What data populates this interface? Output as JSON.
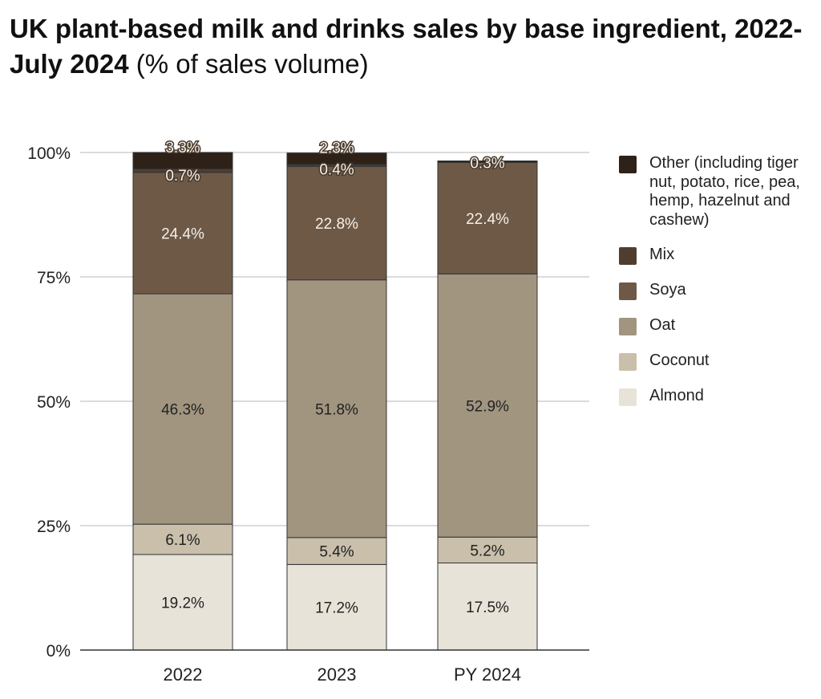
{
  "title_bold": "UK plant-based milk and drinks sales by base ingredient, 2022-July 2024",
  "title_normal": " (% of sales volume)",
  "chart_data": {
    "type": "bar",
    "stacked": true,
    "title": "UK plant-based milk and drinks sales by base ingredient, 2022-July 2024 (% of sales volume)",
    "categories": [
      "2022",
      "2023",
      "PY 2024"
    ],
    "ylim": [
      0,
      100
    ],
    "yticks": [
      "0%",
      "25%",
      "50%",
      "75%",
      "100%"
    ],
    "legend_position": "right",
    "series": [
      {
        "name": "Almond",
        "color": "#e8e3d8",
        "values": [
          19.2,
          17.2,
          17.5
        ],
        "labels": [
          "19.2%",
          "17.2%",
          "17.5%"
        ]
      },
      {
        "name": "Coconut",
        "color": "#c9bfab",
        "values": [
          6.1,
          5.4,
          5.2
        ],
        "labels": [
          "6.1%",
          "5.4%",
          "5.2%"
        ]
      },
      {
        "name": "Oat",
        "color": "#a19580",
        "values": [
          46.3,
          51.8,
          52.9
        ],
        "labels": [
          "46.3%",
          "51.8%",
          "52.9%"
        ]
      },
      {
        "name": "Soya",
        "color": "#6e5947",
        "values": [
          24.4,
          22.8,
          22.4
        ],
        "labels": [
          "24.4%",
          "22.8%",
          "22.4%"
        ]
      },
      {
        "name": "Mix",
        "color": "#4f3e30",
        "values": [
          0.7,
          0.4,
          0
        ],
        "labels": [
          "0.7%",
          "0.4%",
          ""
        ]
      },
      {
        "name": "Other (including tiger nut, potato, rice, pea, hemp, hazelnut and cashew)",
        "color": "#2e2218",
        "values": [
          3.3,
          2.3,
          0.3
        ],
        "labels": [
          "3.3%",
          "2.3%",
          "0.3%"
        ]
      }
    ]
  }
}
